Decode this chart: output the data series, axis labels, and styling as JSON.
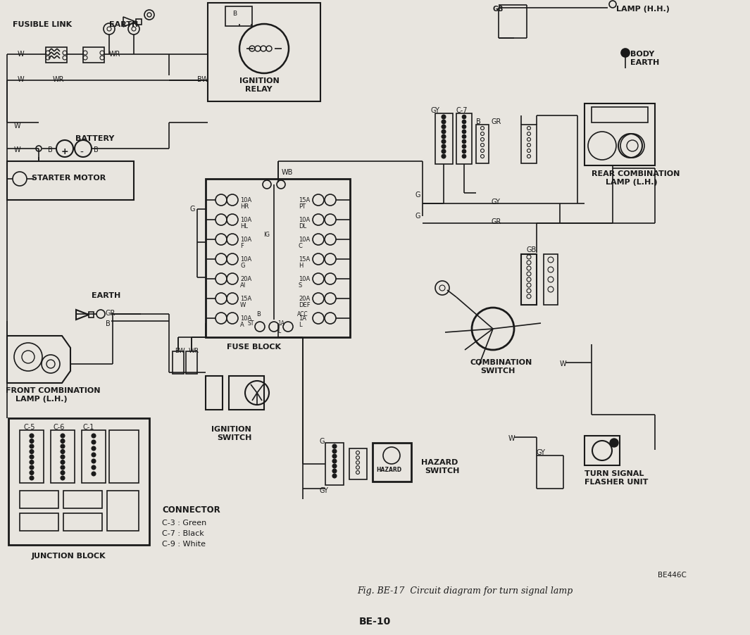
{
  "bg_color": "#e8e5df",
  "line_color": "#1a1a1a",
  "fig_caption": "Fig. BE-17  Circuit diagram for turn signal lamp",
  "fig_code": "BE446C",
  "page_label": "BE-10",
  "connector_labels": [
    "C-3 : Green",
    "C-7 : Black",
    "C-9 : White"
  ]
}
